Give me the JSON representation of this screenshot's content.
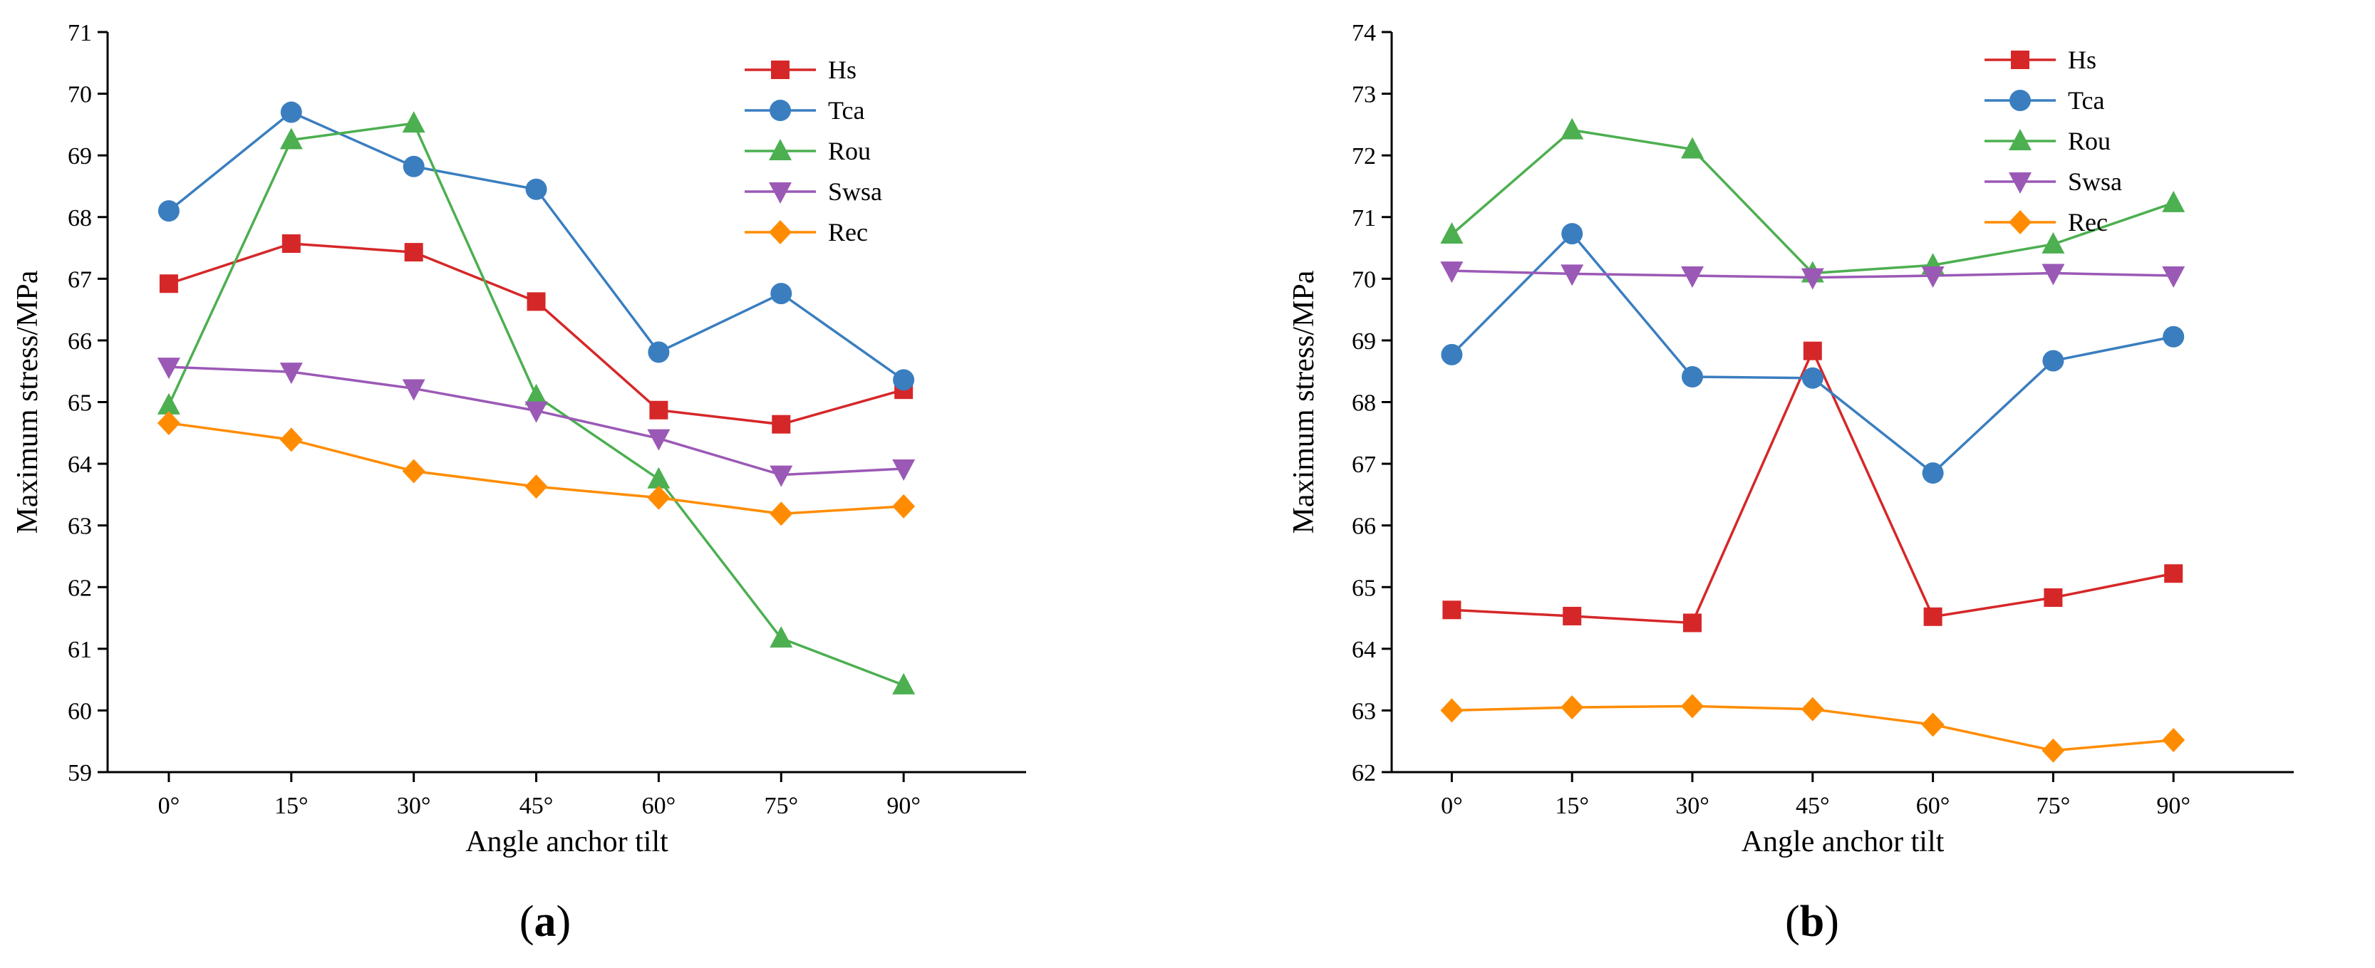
{
  "figure": {
    "panel_labels": [
      "a",
      "b"
    ]
  },
  "colors": {
    "Hs": "#d62728",
    "Tca": "#3a7ebf",
    "Rou": "#4caf50",
    "Swsa": "#9b59b6",
    "Rec": "#ff8c00"
  },
  "chart_data": [
    {
      "panel": "a",
      "type": "line",
      "title": "",
      "xlabel": "Angle anchor tilt",
      "ylabel": "Maximum stress/MPa",
      "categories": [
        "0°",
        "15°",
        "30°",
        "45°",
        "60°",
        "75°",
        "90°"
      ],
      "ylim": [
        59,
        71
      ],
      "yticks": [
        59,
        60,
        61,
        62,
        63,
        64,
        65,
        66,
        67,
        68,
        69,
        70,
        71
      ],
      "grid": false,
      "legend_position": "top-right",
      "series": [
        {
          "name": "Hs",
          "marker": "square",
          "values": [
            66.92,
            67.57,
            67.43,
            66.63,
            64.87,
            64.64,
            65.2
          ]
        },
        {
          "name": "Tca",
          "marker": "circle",
          "values": [
            68.1,
            69.7,
            68.82,
            68.45,
            65.81,
            66.76,
            65.36
          ]
        },
        {
          "name": "Rou",
          "marker": "triangle-up",
          "values": [
            64.95,
            69.25,
            69.52,
            65.1,
            63.75,
            61.17,
            60.41
          ]
        },
        {
          "name": "Swsa",
          "marker": "triangle-down",
          "values": [
            65.57,
            65.49,
            65.22,
            64.86,
            64.41,
            63.82,
            63.92
          ]
        },
        {
          "name": "Rec",
          "marker": "diamond",
          "values": [
            64.66,
            64.39,
            63.88,
            63.63,
            63.45,
            63.19,
            63.31
          ]
        }
      ]
    },
    {
      "panel": "b",
      "type": "line",
      "title": "",
      "xlabel": "Angle anchor tilt",
      "ylabel": "Maximum stress/MPa",
      "categories": [
        "0°",
        "15°",
        "30°",
        "45°",
        "60°",
        "75°",
        "90°"
      ],
      "ylim": [
        62,
        74
      ],
      "yticks": [
        62,
        63,
        64,
        65,
        66,
        67,
        68,
        69,
        70,
        71,
        72,
        73,
        74
      ],
      "grid": false,
      "legend_position": "top-right",
      "series": [
        {
          "name": "Hs",
          "marker": "square",
          "values": [
            64.63,
            64.53,
            64.42,
            68.83,
            64.52,
            64.83,
            65.22
          ]
        },
        {
          "name": "Tca",
          "marker": "circle",
          "values": [
            68.77,
            70.73,
            68.41,
            68.39,
            66.85,
            68.67,
            69.06
          ]
        },
        {
          "name": "Rou",
          "marker": "triangle-up",
          "values": [
            70.72,
            72.41,
            72.1,
            70.09,
            70.22,
            70.56,
            71.23
          ]
        },
        {
          "name": "Swsa",
          "marker": "triangle-down",
          "values": [
            70.13,
            70.08,
            70.05,
            70.02,
            70.05,
            70.09,
            70.05
          ]
        },
        {
          "name": "Rec",
          "marker": "diamond",
          "values": [
            63.0,
            63.05,
            63.07,
            63.02,
            62.77,
            62.35,
            62.52
          ]
        }
      ]
    }
  ]
}
